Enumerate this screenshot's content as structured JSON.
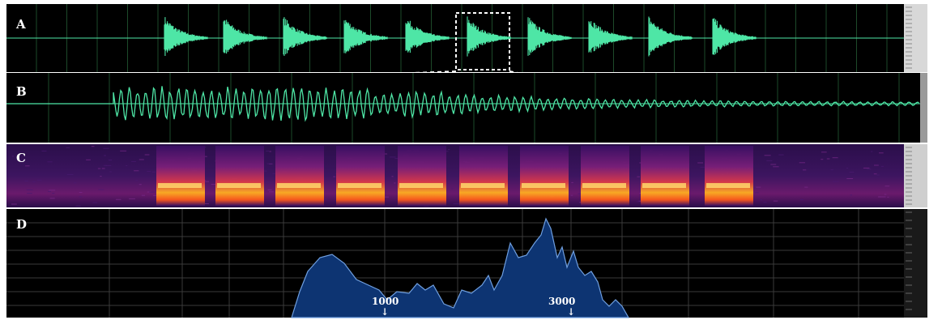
{
  "panels": {
    "a": {
      "label": "A",
      "view": "waveform",
      "waveform_color": "#4ee6a6"
    },
    "b": {
      "label": "B",
      "view": "waveform-zoom",
      "waveform_color": "#4ee6a6"
    },
    "c": {
      "label": "C",
      "view": "spectrogram"
    },
    "d": {
      "label": "D",
      "view": "spectrum",
      "fill_color": "#0d3472"
    }
  },
  "spectrum_markers": [
    {
      "label": "1000",
      "arrow": "↓"
    },
    {
      "label": "3000",
      "arrow": "↓"
    }
  ],
  "colors": {
    "background": "#000000",
    "grid_green": "#1d4a2a",
    "grid_gray": "#3a3a3a",
    "zoom_box": "#ffffff"
  }
}
